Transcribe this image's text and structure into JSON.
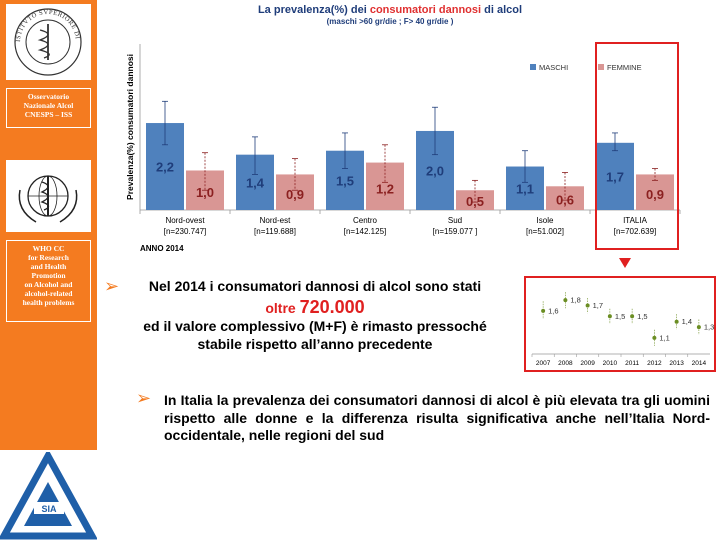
{
  "sidebar": {
    "onas_label": "Osservatorio\nNazionale Alcol\nCNESPS – ISS",
    "who_label": "WHO CC\nfor Research\nand Health\nPromotion\non  Alcohol and\nalcohol-related\nhealth problems",
    "sia_text": "SIA",
    "iss_seal_text": "ISTITVTO SVPERIORE DI SANITÀ"
  },
  "title_part1": "La prevalenza(%) dei ",
  "title_part2": "consumatori dannosi",
  "title_part3": " di alcol",
  "subtitle": "(maschi >60 gr/die ; F> 40 gr/die )",
  "anno_label": "ANNO 2014",
  "colors": {
    "maschi": "#4f81bd",
    "femmine": "#d99694",
    "accent": "#f47b20",
    "highlight": "#e02020",
    "trend": "#6b8e23"
  },
  "chart_data": [
    {
      "type": "bar",
      "ylabel": "Prevalenza(%) consumatori dannosi",
      "categories": [
        "Nord-ovest",
        "Nord-est",
        "Centro",
        "Sud",
        "Isole",
        "ITALIA"
      ],
      "category_n": [
        "[n=230.747]",
        "[n=119.688]",
        "[n=142.125]",
        "[n=159.077   ]",
        "[n=51.002]",
        "[n=702.639]"
      ],
      "series": [
        {
          "name": "MASCHI",
          "values": [
            2.2,
            1.4,
            1.5,
            2.0,
            1.1,
            1.7
          ],
          "labels": [
            "2,2",
            "1,4",
            "1,5",
            "2,0",
            "1,1",
            "1,7"
          ],
          "err": [
            [
              1.65,
              2.75
            ],
            [
              0.9,
              1.85
            ],
            [
              1.05,
              1.95
            ],
            [
              1.4,
              2.6
            ],
            [
              0.7,
              1.5
            ],
            [
              1.5,
              1.95
            ]
          ]
        },
        {
          "name": "FEMMINE",
          "values": [
            1.0,
            0.9,
            1.2,
            0.5,
            0.6,
            0.9
          ],
          "labels": [
            "1,0",
            "0,9",
            "1,2",
            "0,5",
            "0,6",
            "0,9"
          ],
          "err": [
            [
              0.5,
              1.45
            ],
            [
              0.5,
              1.3
            ],
            [
              0.7,
              1.65
            ],
            [
              0.2,
              0.75
            ],
            [
              0.25,
              0.95
            ],
            [
              0.75,
              1.05
            ]
          ]
        }
      ],
      "ylim": [
        0,
        4.2
      ],
      "grid": false,
      "legend": "top-right"
    },
    {
      "type": "line",
      "x": [
        "2007",
        "2008",
        "2009",
        "2010",
        "2011",
        "2012",
        "2013",
        "2014"
      ],
      "values": [
        1.6,
        1.8,
        1.7,
        1.5,
        1.5,
        1.1,
        1.4,
        1.3
      ],
      "labels": [
        "1,6",
        "1,8",
        "1,7",
        "1,5",
        "1,5",
        "1,1",
        "1,4",
        "1,3"
      ],
      "err": [
        [
          1.45,
          1.78
        ],
        [
          1.65,
          1.95
        ],
        [
          1.56,
          1.84
        ],
        [
          1.36,
          1.64
        ],
        [
          1.36,
          1.64
        ],
        [
          0.95,
          1.25
        ],
        [
          1.26,
          1.54
        ],
        [
          1.16,
          1.44
        ]
      ],
      "ylim": [
        0.8,
        2.1
      ],
      "grid": false
    }
  ],
  "text1": {
    "line1": "Nel 2014 i consumatori dannosi di alcol sono stati",
    "oltre": "oltre ",
    "value": "720.000",
    "line3": "ed il valore complessivo (M+F) è rimasto pressoché",
    "line4": "stabile rispetto all’anno precedente"
  },
  "text2": "In Italia la prevalenza dei consumatori dannosi di alcol è più elevata tra gli uomini rispetto alle donne e la differenza risulta significativa anche nell’Italia Nord-occidentale, nelle regioni del sud",
  "bullet_glyph": "➢"
}
